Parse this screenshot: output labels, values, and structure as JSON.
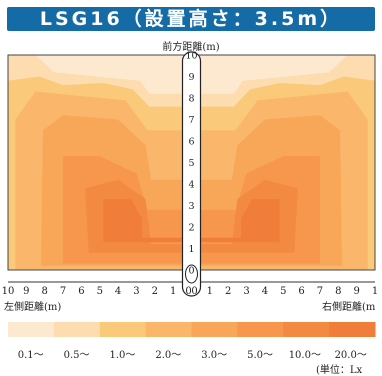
{
  "title": "LSG16（設置高さ：3.5m）",
  "front_axis_label": "前方距離(m)",
  "left_axis_label": "左側距離(m)",
  "right_axis_label": "右側距離(m",
  "unit_label": "(単位：Lx",
  "colors": {
    "title_bg": "#156ba6",
    "levels": [
      "#fde9cf",
      "#fddcb0",
      "#fbc97a",
      "#fab76b",
      "#f8a758",
      "#f6974d",
      "#f38a42",
      "#f07e3a"
    ]
  },
  "chart_data": {
    "type": "heatmap",
    "title": "LSG16（設置高さ：3.5m）",
    "xlabel_left": "左側距離(m)",
    "xlabel_right": "右側距離(m",
    "ylabel": "前方距離(m)",
    "x_ticks_left": [
      "10",
      "9",
      "8",
      "7",
      "6",
      "5",
      "4",
      "3",
      "2",
      "1",
      "0"
    ],
    "x_ticks_right": [
      "0",
      "1",
      "2",
      "3",
      "4",
      "5",
      "6",
      "7",
      "8",
      "9",
      "1"
    ],
    "y_ticks": [
      "10",
      "9",
      "8",
      "7",
      "6",
      "5",
      "4",
      "3",
      "2",
      "1",
      "0"
    ],
    "xlim": [
      -10,
      10
    ],
    "ylim": [
      0,
      10
    ],
    "legend": [
      "0.1～",
      "0.5～",
      "1.0～",
      "2.0～",
      "3.0～",
      "5.0～",
      "10.0～",
      "20.0～"
    ],
    "unit": "Lx",
    "contour_levels": [
      {
        "level": 1,
        "threshold": "0.5～",
        "polygon": [
          [
            -10,
            0
          ],
          [
            -10,
            10
          ],
          [
            -8.5,
            10
          ],
          [
            -7.5,
            9.2
          ],
          [
            -5.2,
            9
          ],
          [
            -2.8,
            8.8
          ],
          [
            -2.3,
            8.2
          ],
          [
            2.3,
            8.2
          ],
          [
            2.8,
            8.8
          ],
          [
            5.2,
            9
          ],
          [
            7.5,
            9.2
          ],
          [
            8.5,
            10
          ],
          [
            10,
            10
          ],
          [
            10,
            0
          ]
        ]
      },
      {
        "level": 2,
        "threshold": "1.0～",
        "polygon": [
          [
            -10,
            0
          ],
          [
            -10,
            8.8
          ],
          [
            -8.3,
            9
          ],
          [
            -7,
            8.6
          ],
          [
            -4.8,
            8.7
          ],
          [
            -3.2,
            8.4
          ],
          [
            -2.3,
            7.6
          ],
          [
            2.3,
            7.6
          ],
          [
            3.2,
            8.4
          ],
          [
            4.8,
            8.7
          ],
          [
            7,
            8.6
          ],
          [
            8.3,
            9
          ],
          [
            10,
            8.8
          ],
          [
            10,
            0
          ]
        ]
      },
      {
        "level": 3,
        "threshold": "2.0～",
        "polygon": [
          [
            -9.6,
            0
          ],
          [
            -9.6,
            7
          ],
          [
            -8.5,
            8.3
          ],
          [
            -6.2,
            8.1
          ],
          [
            -3.6,
            7.9
          ],
          [
            -2.4,
            6.5
          ],
          [
            2.4,
            6.5
          ],
          [
            3.6,
            7.9
          ],
          [
            6.2,
            8.1
          ],
          [
            8.5,
            8.3
          ],
          [
            9.6,
            7
          ],
          [
            9.6,
            0
          ]
        ]
      },
      {
        "level": 4,
        "threshold": "3.0～",
        "polygon": [
          [
            -8.2,
            0.2
          ],
          [
            -8.1,
            6.5
          ],
          [
            -7,
            7.2
          ],
          [
            -4,
            7
          ],
          [
            -2.5,
            5.8
          ],
          [
            -2.2,
            4.2
          ],
          [
            2.2,
            4.2
          ],
          [
            2.5,
            5.8
          ],
          [
            4,
            7
          ],
          [
            7,
            7.2
          ],
          [
            8.1,
            6.5
          ],
          [
            8.2,
            0.2
          ]
        ]
      },
      {
        "level": 5,
        "threshold": "5.0～",
        "polygon": [
          [
            -7,
            0.3
          ],
          [
            -7,
            5.3
          ],
          [
            -5,
            5.3
          ],
          [
            -3,
            4.5
          ],
          [
            -2.4,
            2.8
          ],
          [
            2.4,
            2.8
          ],
          [
            3,
            4.5
          ],
          [
            5,
            5.3
          ],
          [
            7,
            5.3
          ],
          [
            7,
            0.3
          ]
        ]
      },
      {
        "level": 6,
        "threshold": "10.0～",
        "polygon": [
          [
            -5.6,
            0.8
          ],
          [
            -5.8,
            3.8
          ],
          [
            -4,
            4.2
          ],
          [
            -2.5,
            3.3
          ],
          [
            -2.2,
            1.2
          ],
          [
            2.2,
            1.2
          ],
          [
            2.5,
            3.3
          ],
          [
            4,
            4.2
          ],
          [
            5.8,
            3.8
          ],
          [
            5.6,
            0.8
          ]
        ]
      },
      {
        "level": 7,
        "threshold": "20.0～",
        "polygon": [
          [
            -4.8,
            1.3
          ],
          [
            -4.8,
            3.3
          ],
          [
            -3.3,
            3.3
          ],
          [
            -2.7,
            2.4
          ],
          [
            -2.7,
            1.5
          ],
          [
            2.7,
            1.5
          ],
          [
            2.7,
            2.4
          ],
          [
            3.3,
            3.3
          ],
          [
            4.8,
            3.3
          ],
          [
            4.8,
            1.3
          ]
        ]
      }
    ]
  }
}
